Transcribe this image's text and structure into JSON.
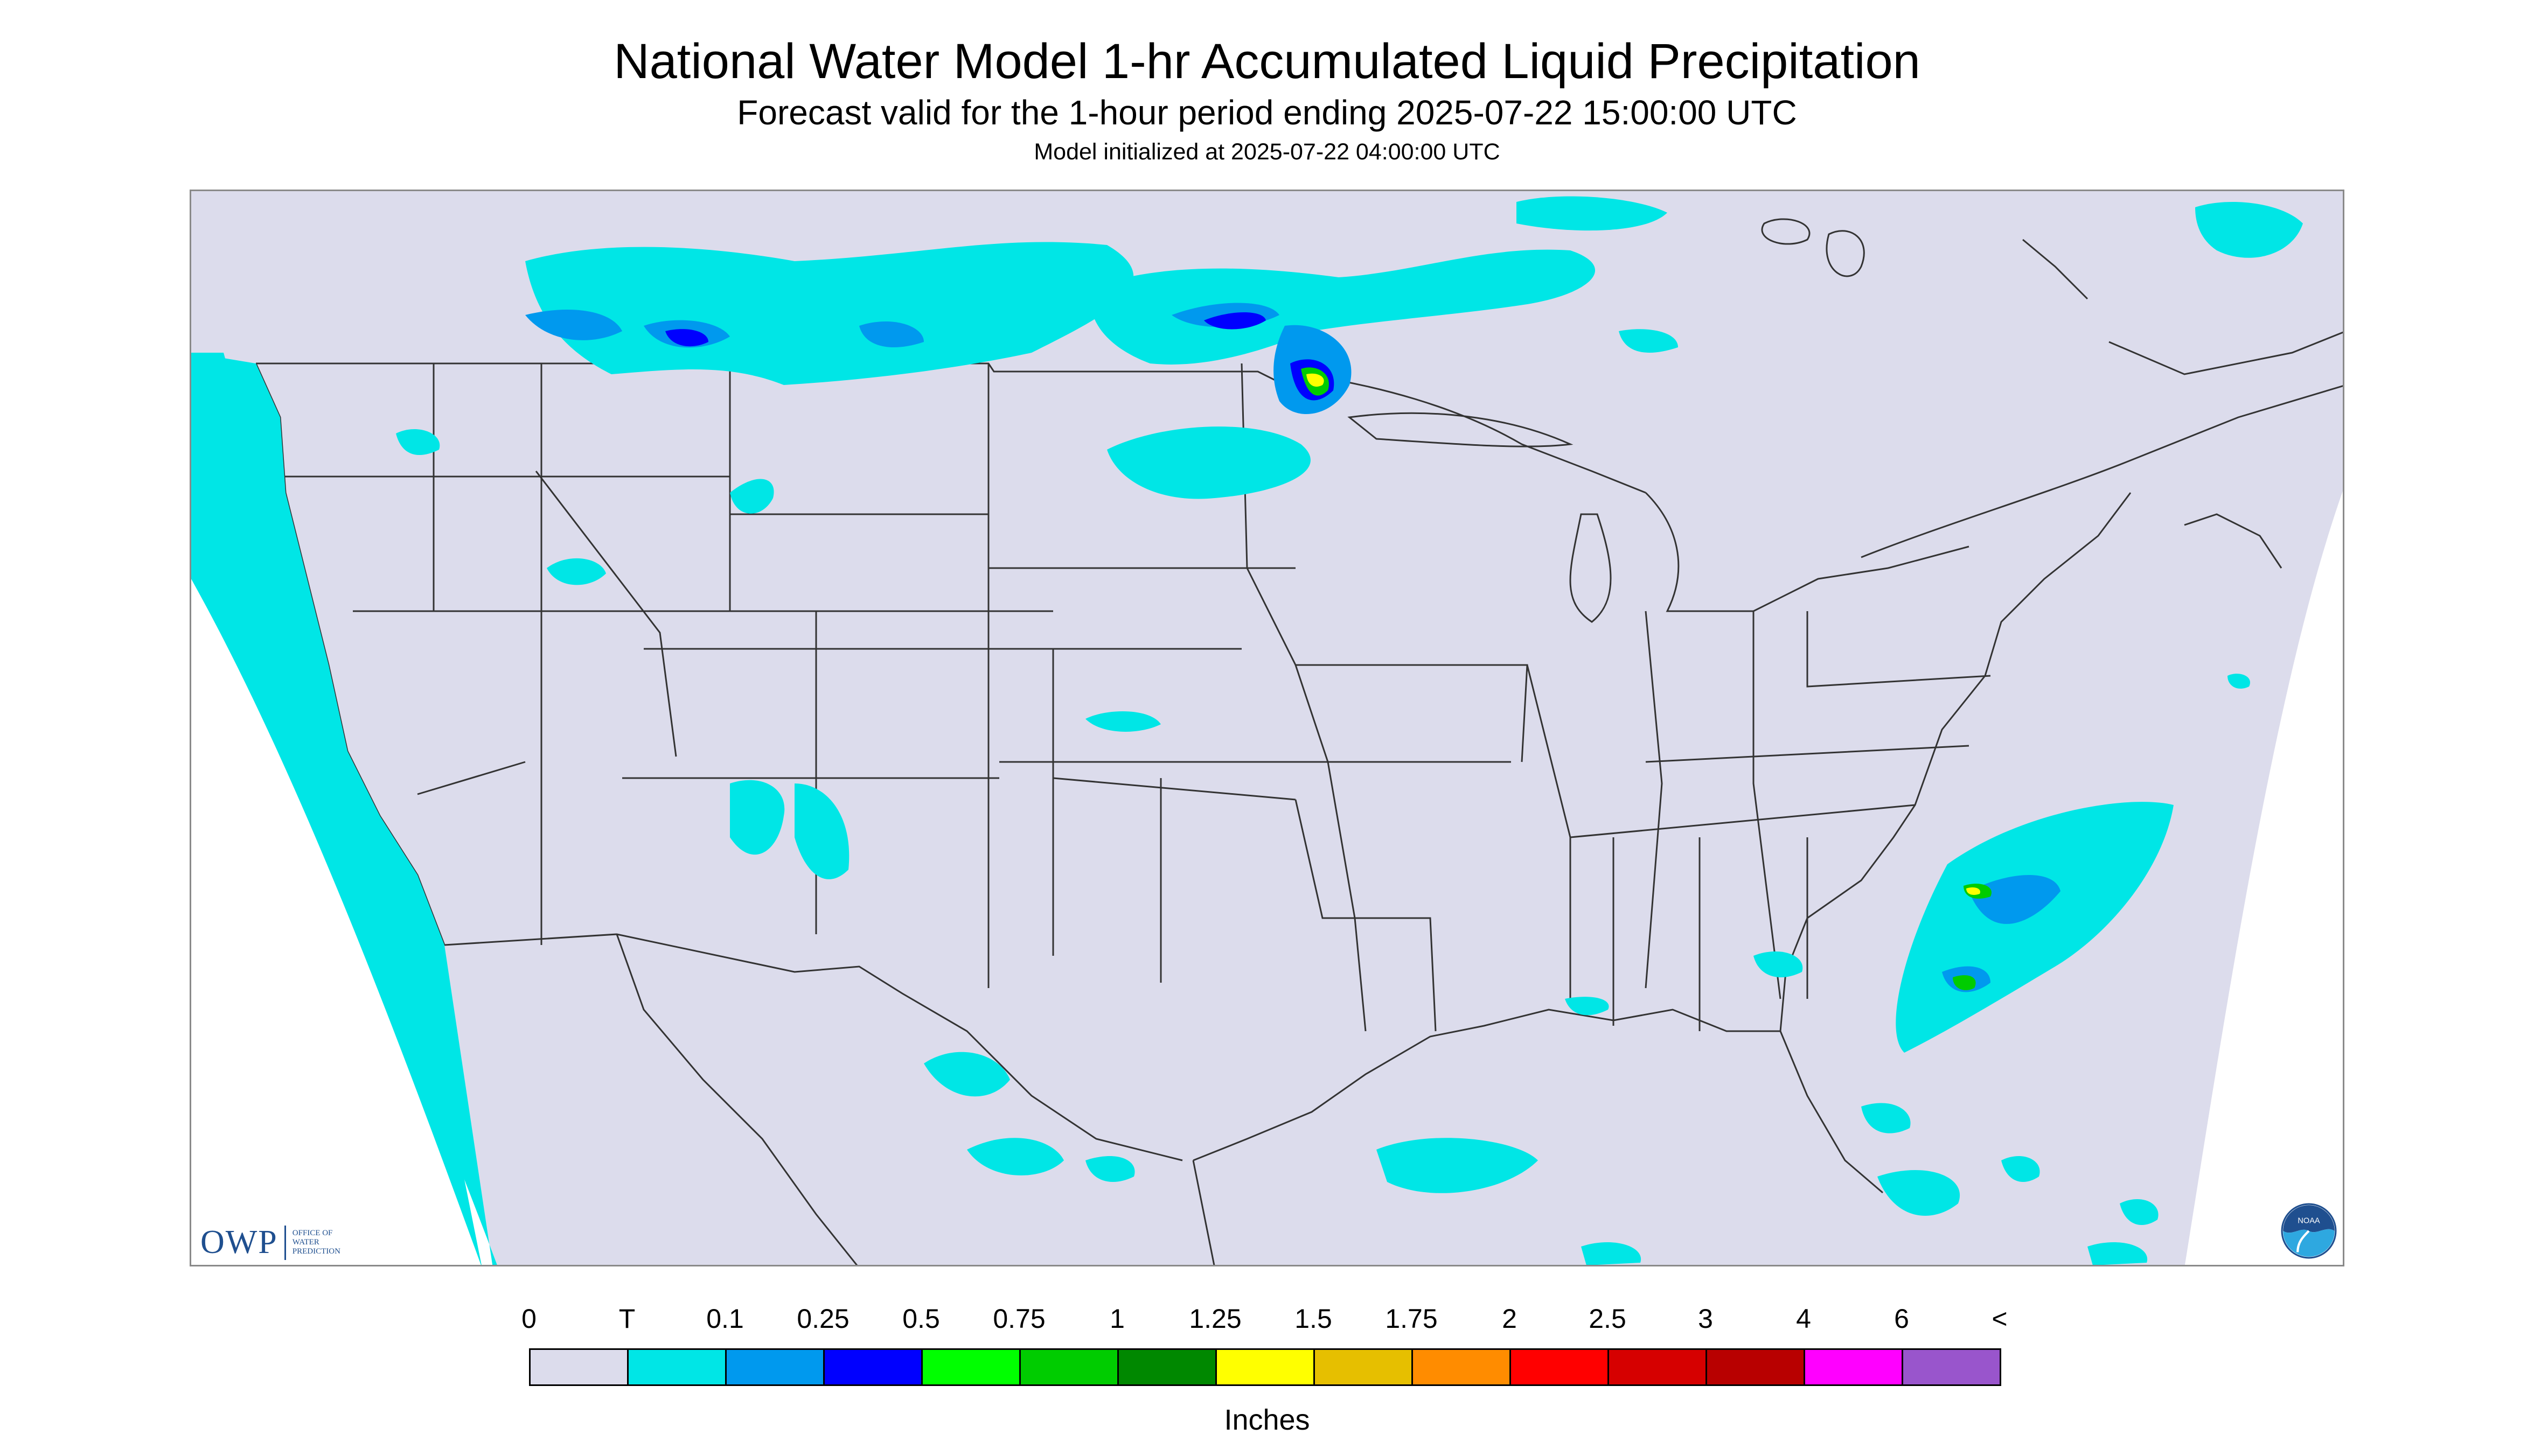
{
  "header": {
    "title": "National Water Model 1-hr Accumulated Liquid Precipitation",
    "subtitle": "Forecast valid for the 1-hour period ending 2025-07-22 15:00:00 UTC",
    "init": "Model initialized at 2025-07-22 04:00:00 UTC"
  },
  "logos": {
    "owp_text": "OWP",
    "owp_line1": "OFFICE OF",
    "owp_line2": "WATER",
    "owp_line3": "PREDICTION",
    "noaa_text": "NOAA"
  },
  "legend": {
    "units": "Inches",
    "tick_labels": [
      "0",
      "T",
      "0.1",
      "0.25",
      "0.5",
      "0.75",
      "1",
      "1.25",
      "1.5",
      "1.75",
      "2",
      "2.5",
      "3",
      "4",
      "6",
      "<"
    ],
    "colors": [
      "#dcdcec",
      "#00e6e6",
      "#0099ee",
      "#0000ff",
      "#00ff00",
      "#00cc00",
      "#008800",
      "#ffff00",
      "#e6bf00",
      "#ff8c00",
      "#ff0000",
      "#d60000",
      "#b80000",
      "#ff00ff",
      "#9955cc"
    ]
  },
  "map": {
    "domain_fill": "#dcdcec",
    "outside_fill": "#ffffff",
    "boundary_color": "#333333"
  }
}
